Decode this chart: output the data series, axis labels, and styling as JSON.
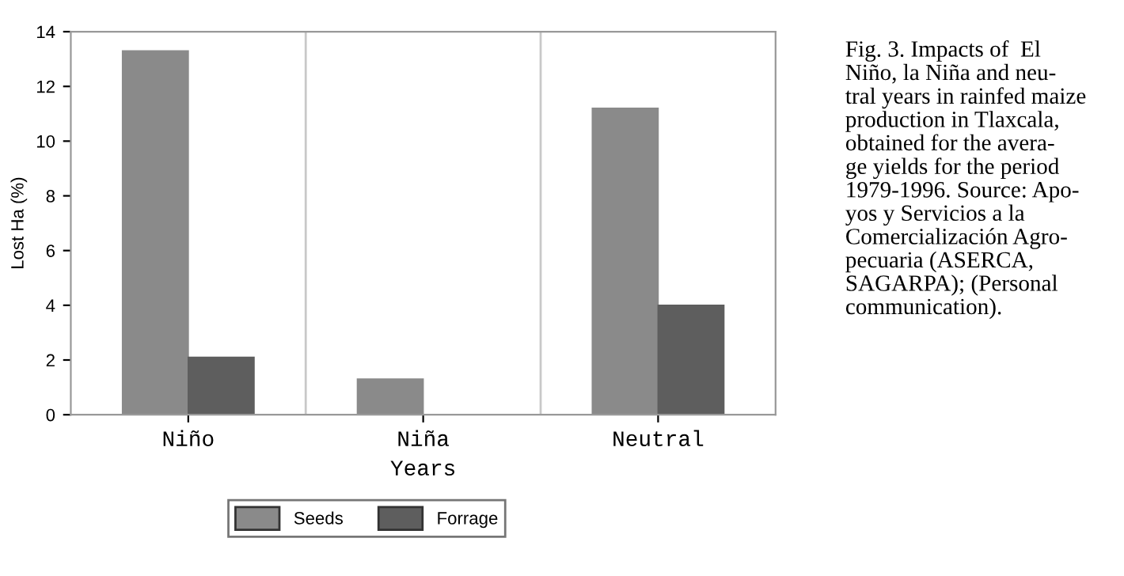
{
  "chart_data": {
    "type": "bar",
    "categories": [
      "Niño",
      "Niña",
      "Neutral"
    ],
    "xlabel": "Years",
    "ylabel": "Lost Ha (%)",
    "series": [
      {
        "name": "Seeds",
        "color": "#8a8a8a",
        "values": [
          13.3,
          1.3,
          11.2
        ]
      },
      {
        "name": "Forrage",
        "color": "#5e5e5e",
        "values": [
          2.1,
          0,
          4.0
        ]
      }
    ],
    "ylim": [
      0,
      14
    ],
    "yticks": [
      0,
      2,
      4,
      6,
      8,
      10,
      12,
      14
    ],
    "legend": "bottom",
    "annotations": [
      "Fig. 3. Impacts of  El\nNiño, la Niña and neu-\ntral years in rainfed maize\nproduction in Tlaxcala,\nobtained for the avera-\nge yields for the period\n1979-1996. Source: Apo-\nyos y Servicios a la\nComercialización Agro-\npecuaria (ASERCA,\nSAGARPA); (Personal\ncommunication)."
    ]
  }
}
